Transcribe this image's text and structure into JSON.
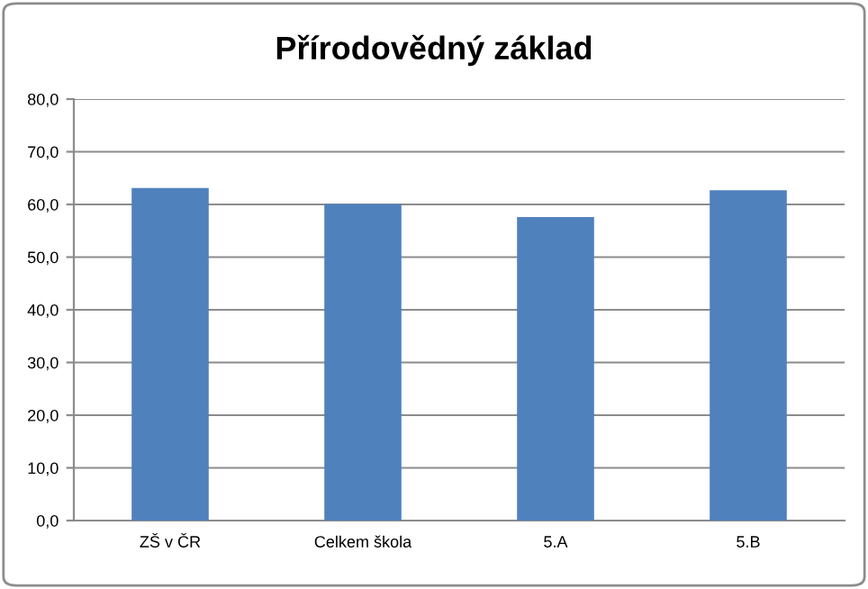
{
  "chart_data": {
    "type": "bar",
    "title": "Přírodovědný základ",
    "categories": [
      "ZŠ v ČR",
      "Celkem škola",
      "5.A",
      "5.B"
    ],
    "values": [
      63.1,
      60.1,
      57.6,
      62.7
    ],
    "color": "#4f81bd",
    "ylim": [
      0,
      80
    ],
    "yticks": [
      {
        "value": 0,
        "label": "0,0"
      },
      {
        "value": 10,
        "label": "10,0"
      },
      {
        "value": 20,
        "label": "20,0"
      },
      {
        "value": 30,
        "label": "30,0"
      },
      {
        "value": 40,
        "label": "40,0"
      },
      {
        "value": 50,
        "label": "50,0"
      },
      {
        "value": 60,
        "label": "60,0"
      },
      {
        "value": 70,
        "label": "70,0"
      },
      {
        "value": 80,
        "label": "80,0"
      }
    ],
    "grid": "y",
    "legend": false
  }
}
